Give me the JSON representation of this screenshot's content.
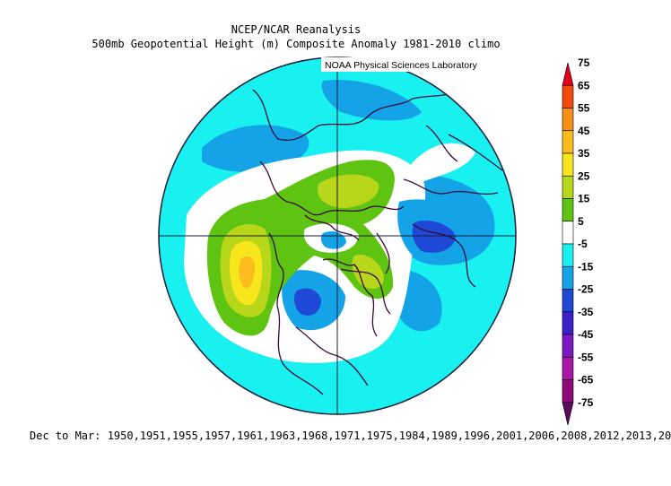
{
  "header": {
    "title": "NCEP/NCAR Reanalysis",
    "subtitle": "500mb Geopotential Height (m) Composite Anomaly 1981-2010 climo",
    "credit": "NOAA Physical Sciences Laboratory"
  },
  "footer": {
    "note": "Dec to Mar: 1950,1951,1955,1957,1961,1963,1968,1971,1975,1984,1989,1996,2001,2006,2008,2012,2013,20"
  },
  "colorbar": {
    "levels": [
      "75",
      "65",
      "55",
      "45",
      "35",
      "25",
      "15",
      "5",
      "-5",
      "-15",
      "-25",
      "-35",
      "-45",
      "-55",
      "-65",
      "-75"
    ],
    "colors": [
      "#e0001c",
      "#f24a0a",
      "#f98e14",
      "#fbbc1e",
      "#f7e61c",
      "#b8d61a",
      "#5ec411",
      "#ffffff",
      "#19f0f0",
      "#14a3e6",
      "#1f48d6",
      "#3b1fc8",
      "#7a18c2",
      "#a816a6",
      "#8c0a7a",
      "#5a0a5a"
    ]
  },
  "map": {
    "projection": "north-polar-stereographic",
    "anomaly_colors": {
      "ocean_pos_small": "#ffffff",
      "background": "#19f0f0",
      "blue_weak": "#14a3e6",
      "blue_mid": "#1f48d6",
      "green": "#5ec411",
      "yellowgreen": "#b8d61a",
      "yellow": "#f7e61c",
      "orange": "#fbbc1e",
      "outline": "#3a0a3a"
    }
  }
}
